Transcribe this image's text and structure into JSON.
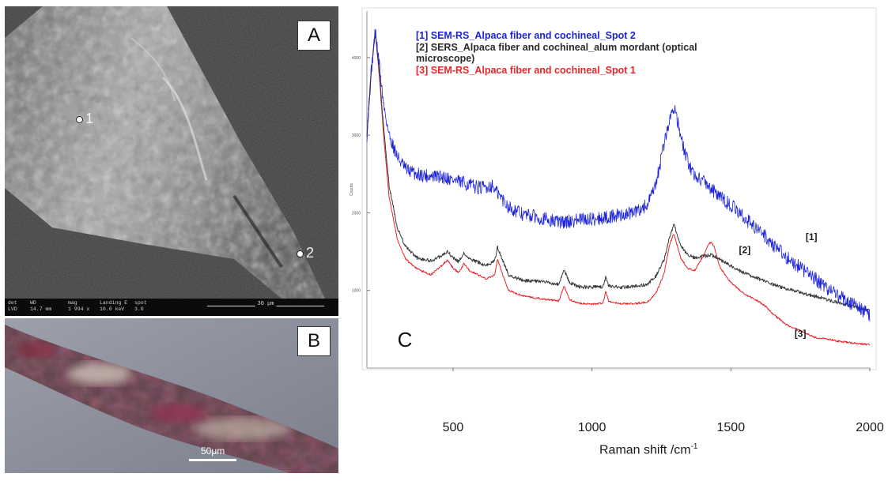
{
  "panels": {
    "a": {
      "letter": "A",
      "spot1_label": "1",
      "spot2_label": "2",
      "databar": [
        {
          "top": "det",
          "bottom": "LVD"
        },
        {
          "top": "WD",
          "bottom": "14.7 mm"
        },
        {
          "top": "mag",
          "bottom": "1 994 x"
        },
        {
          "top": "Landing E",
          "bottom": "10.0 keV"
        },
        {
          "top": "spot",
          "bottom": "3.0"
        }
      ],
      "scale_text": "30 μm"
    },
    "b": {
      "letter": "B",
      "scale_text": "50μm"
    },
    "c": {
      "letter": "C",
      "y_axis_label": "Counts",
      "x_axis_title": "Raman shift /cm",
      "x_axis_title_sup": "-1"
    }
  },
  "chart_data": {
    "type": "line",
    "title": "",
    "xlabel": "Raman shift /cm-1",
    "ylabel": "Counts",
    "xlim": [
      190,
      2000
    ],
    "ylim": [
      0,
      4600
    ],
    "x_ticks": [
      500,
      1000,
      1500,
      2000
    ],
    "y_ticks": [
      1000,
      2000,
      3000,
      4000
    ],
    "legend_position": "top-left",
    "series": [
      {
        "name": "[1] SEM-RS_Alpaca fiber and cochineal_Spot 2",
        "tag": "[1]",
        "color": "#1d24d8",
        "x": [
          190,
          205,
          220,
          235,
          250,
          270,
          300,
          330,
          370,
          420,
          470,
          520,
          560,
          600,
          640,
          660,
          700,
          750,
          800,
          850,
          900,
          950,
          1000,
          1050,
          1100,
          1150,
          1200,
          1230,
          1260,
          1280,
          1295,
          1305,
          1320,
          1345,
          1370,
          1400,
          1430,
          1460,
          1500,
          1550,
          1600,
          1650,
          1700,
          1750,
          1800,
          1850,
          1900,
          1950,
          2000
        ],
        "y": [
          3000,
          3800,
          4340,
          3900,
          3400,
          3000,
          2720,
          2560,
          2500,
          2470,
          2460,
          2400,
          2360,
          2320,
          2350,
          2250,
          2080,
          1980,
          1950,
          1900,
          1880,
          1910,
          1920,
          1940,
          1970,
          2000,
          2100,
          2350,
          2900,
          3200,
          3380,
          3250,
          2950,
          2650,
          2480,
          2420,
          2310,
          2200,
          2100,
          1930,
          1780,
          1600,
          1430,
          1290,
          1160,
          1020,
          900,
          800,
          680
        ],
        "noise": 90
      },
      {
        "name": "[2] SERS_Alpaca fiber and cochineal_alum mordant (optical microscope)",
        "tag": "[2]",
        "color": "#3a3a3a",
        "x": [
          190,
          205,
          220,
          235,
          250,
          270,
          300,
          330,
          370,
          420,
          460,
          480,
          500,
          520,
          540,
          560,
          580,
          620,
          650,
          660,
          680,
          700,
          750,
          800,
          850,
          880,
          900,
          920,
          950,
          1000,
          1040,
          1050,
          1060,
          1100,
          1150,
          1200,
          1230,
          1260,
          1280,
          1295,
          1305,
          1320,
          1345,
          1370,
          1400,
          1430,
          1460,
          1500,
          1550,
          1600,
          1650,
          1700,
          1800,
          1900,
          2000
        ],
        "y": [
          3000,
          3800,
          4340,
          3800,
          3100,
          2350,
          1800,
          1560,
          1420,
          1380,
          1450,
          1500,
          1420,
          1370,
          1480,
          1400,
          1380,
          1320,
          1380,
          1560,
          1380,
          1200,
          1130,
          1120,
          1100,
          1080,
          1260,
          1100,
          1050,
          1040,
          1050,
          1180,
          1060,
          1040,
          1050,
          1080,
          1180,
          1400,
          1700,
          1850,
          1740,
          1580,
          1460,
          1420,
          1440,
          1460,
          1400,
          1320,
          1220,
          1150,
          1080,
          1020,
          930,
          830,
          740
        ],
        "noise": 22
      },
      {
        "name": "[3] SEM-RS_Alpaca fiber and cochineal_Spot 1",
        "tag": "[3]",
        "color": "#e8262a",
        "x": [
          190,
          205,
          220,
          235,
          250,
          270,
          300,
          330,
          370,
          420,
          460,
          480,
          500,
          520,
          540,
          560,
          580,
          620,
          650,
          660,
          680,
          700,
          750,
          800,
          850,
          880,
          900,
          920,
          950,
          1000,
          1040,
          1050,
          1060,
          1100,
          1150,
          1200,
          1230,
          1260,
          1280,
          1295,
          1305,
          1320,
          1345,
          1370,
          1400,
          1420,
          1430,
          1440,
          1460,
          1500,
          1550,
          1600,
          1630,
          1650,
          1700,
          1800,
          1900,
          2000
        ],
        "y": [
          3000,
          3780,
          4340,
          3750,
          3000,
          2200,
          1650,
          1400,
          1280,
          1200,
          1320,
          1390,
          1290,
          1230,
          1350,
          1250,
          1220,
          1150,
          1200,
          1400,
          1190,
          1000,
          930,
          900,
          880,
          860,
          1060,
          880,
          840,
          820,
          840,
          990,
          860,
          830,
          830,
          850,
          960,
          1220,
          1600,
          1730,
          1600,
          1420,
          1280,
          1260,
          1440,
          1600,
          1620,
          1560,
          1300,
          1100,
          950,
          860,
          780,
          700,
          560,
          400,
          340,
          300
        ],
        "noise": 12
      }
    ]
  }
}
